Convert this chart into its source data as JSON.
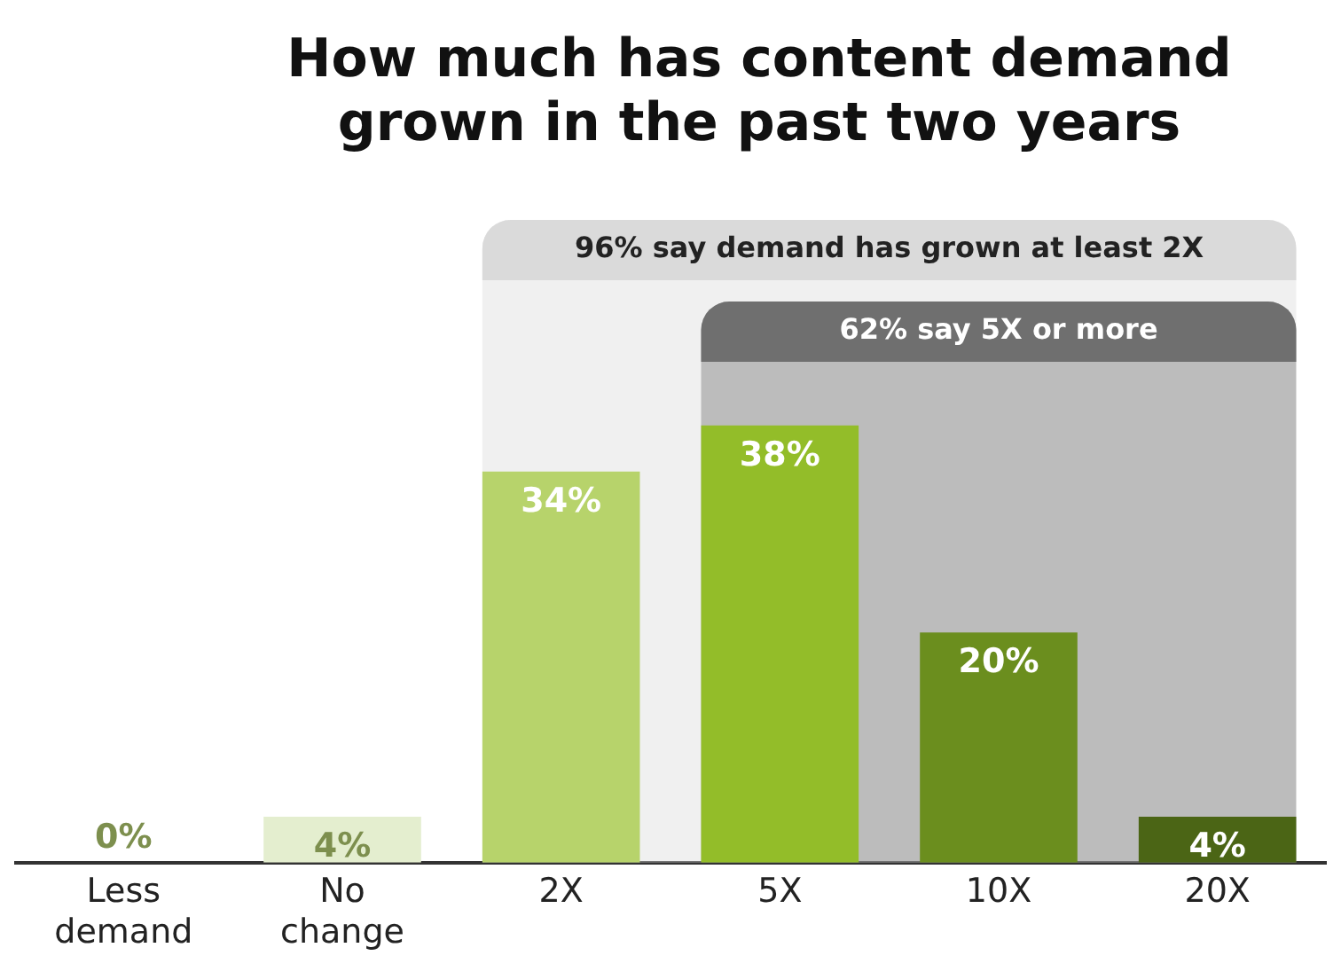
{
  "chart_data": {
    "type": "bar",
    "title": "How much has content demand grown in the past two years",
    "categories": [
      "Less demand",
      "No change",
      "2X",
      "5X",
      "10X",
      "20X"
    ],
    "values": [
      0,
      4,
      34,
      38,
      20,
      4
    ],
    "colors": [
      "#7d8f4e",
      "#e4eecf",
      "#b7d36b",
      "#93bd29",
      "#6b8e1e",
      "#4b6515"
    ],
    "value_labels": [
      "0%",
      "4%",
      "34%",
      "38%",
      "20%",
      "4%"
    ],
    "bands": [
      {
        "axis": "x",
        "from": "2X",
        "to": "20X",
        "label": "96% say demand has grown at least 2X",
        "color": "#dadada"
      },
      {
        "axis": "x",
        "from": "5X",
        "to": "20X",
        "label": "62% say 5X or more",
        "color": "#6f6f6f"
      }
    ]
  }
}
